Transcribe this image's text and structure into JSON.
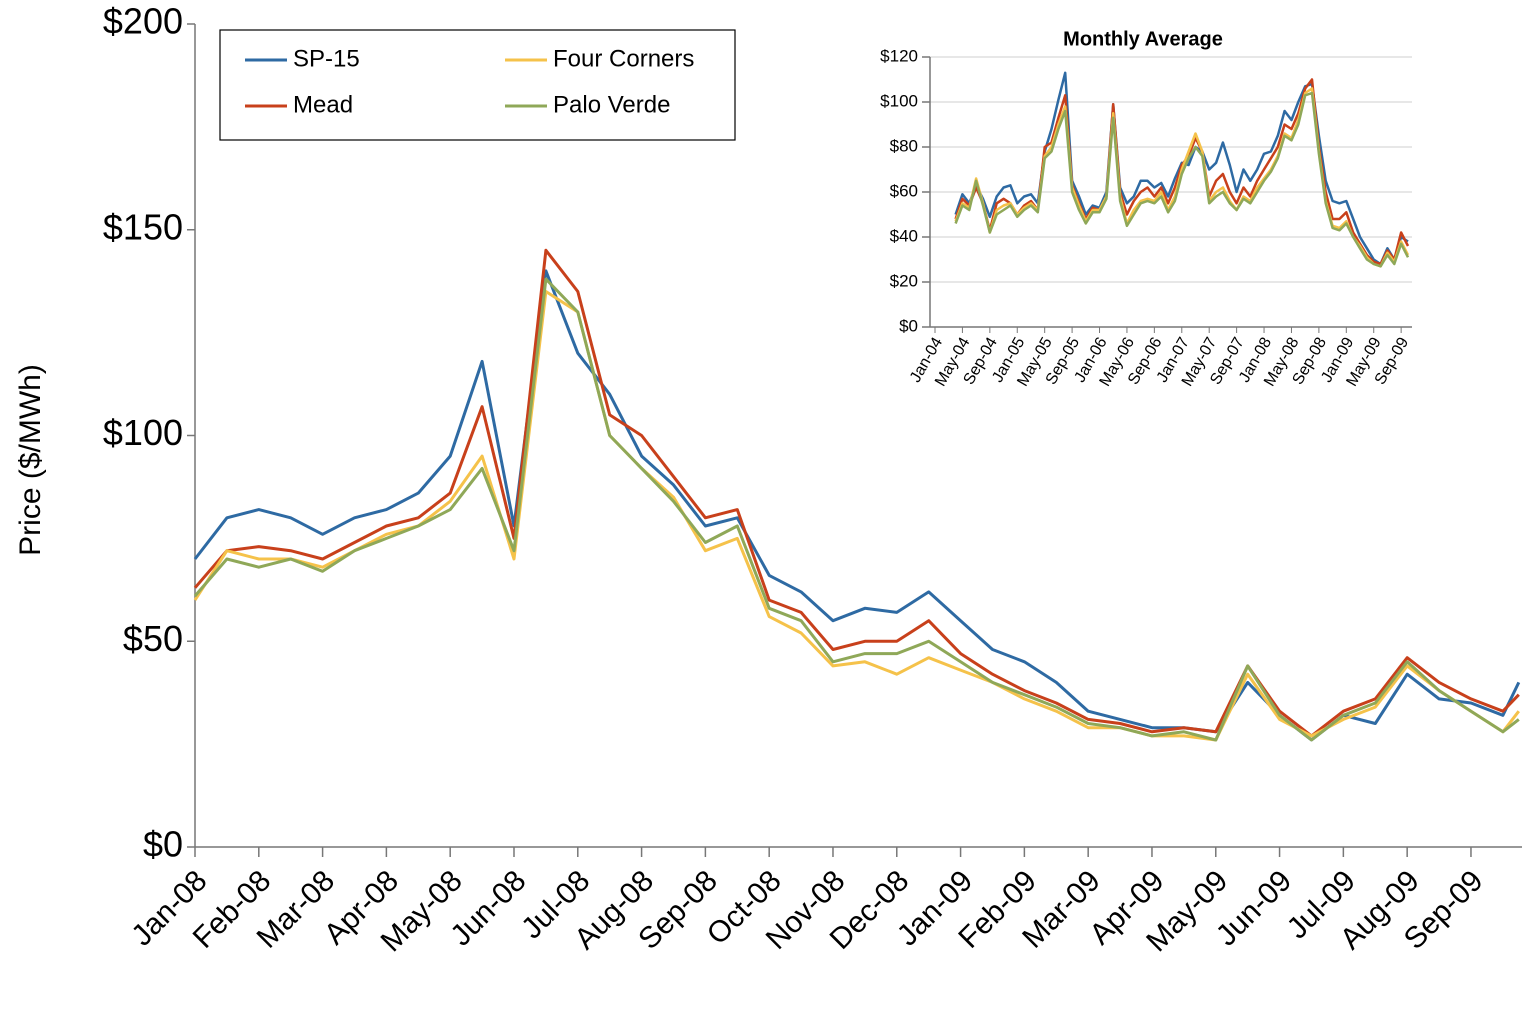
{
  "chart_data": [
    {
      "type": "line",
      "y_label": "Price ($/MWh)",
      "x": [
        0,
        0.5,
        1,
        1.5,
        2,
        2.5,
        3,
        3.5,
        4,
        4.5,
        5,
        5.5,
        6,
        6.5,
        7,
        7.5,
        8,
        8.5,
        9,
        9.5,
        10,
        10.5,
        11,
        11.5,
        12,
        12.5,
        13,
        13.5,
        14,
        14.5,
        15,
        15.5,
        16,
        16.5,
        17,
        17.5,
        18,
        18.5,
        19,
        19.5,
        20,
        20.5,
        20.75
      ],
      "xlim": [
        0,
        20.8
      ],
      "xticks": [
        {
          "value": 0,
          "label": "Jan-08"
        },
        {
          "value": 1,
          "label": "Feb-08"
        },
        {
          "value": 2,
          "label": "Mar-08"
        },
        {
          "value": 3,
          "label": "Apr-08"
        },
        {
          "value": 4,
          "label": "May-08"
        },
        {
          "value": 5,
          "label": "Jun-08"
        },
        {
          "value": 6,
          "label": "Jul-08"
        },
        {
          "value": 7,
          "label": "Aug-08"
        },
        {
          "value": 8,
          "label": "Sep-08"
        },
        {
          "value": 9,
          "label": "Oct-08"
        },
        {
          "value": 10,
          "label": "Nov-08"
        },
        {
          "value": 11,
          "label": "Dec-08"
        },
        {
          "value": 12,
          "label": "Jan-09"
        },
        {
          "value": 13,
          "label": "Feb-09"
        },
        {
          "value": 14,
          "label": "Mar-09"
        },
        {
          "value": 15,
          "label": "Apr-09"
        },
        {
          "value": 16,
          "label": "May-09"
        },
        {
          "value": 17,
          "label": "Jun-09"
        },
        {
          "value": 18,
          "label": "Jul-09"
        },
        {
          "value": 19,
          "label": "Aug-09"
        },
        {
          "value": 20,
          "label": "Sep-09"
        }
      ],
      "ylim": [
        0,
        200
      ],
      "yticks": [
        {
          "value": 0,
          "label": "$0"
        },
        {
          "value": 50,
          "label": "$50"
        },
        {
          "value": 100,
          "label": "$100"
        },
        {
          "value": 150,
          "label": "$150"
        },
        {
          "value": 200,
          "label": "$200"
        }
      ],
      "grid": false,
      "legend": "upper left",
      "series": [
        {
          "name": "SP-15",
          "color": "#2e6aa3",
          "values": [
            70,
            80,
            82,
            80,
            76,
            80,
            82,
            86,
            95,
            118,
            78,
            140,
            120,
            110,
            95,
            88,
            78,
            80,
            66,
            62,
            55,
            58,
            57,
            62,
            55,
            48,
            45,
            40,
            33,
            31,
            29,
            29,
            28,
            40,
            32,
            26,
            32,
            30,
            42,
            36,
            35,
            32,
            40
          ]
        },
        {
          "name": "Mead",
          "color": "#c8401b",
          "values": [
            63,
            72,
            73,
            72,
            70,
            74,
            78,
            80,
            86,
            107,
            75,
            145,
            135,
            105,
            100,
            90,
            80,
            82,
            60,
            57,
            48,
            50,
            50,
            55,
            47,
            42,
            38,
            35,
            31,
            30,
            28,
            29,
            28,
            44,
            33,
            27,
            33,
            36,
            46,
            40,
            36,
            33,
            37
          ]
        },
        {
          "name": "Four Corners",
          "color": "#f5c24a",
          "values": [
            60,
            72,
            70,
            70,
            68,
            72,
            76,
            78,
            84,
            95,
            70,
            135,
            130,
            100,
            92,
            85,
            72,
            75,
            56,
            52,
            44,
            45,
            42,
            46,
            43,
            40,
            36,
            33,
            29,
            29,
            27,
            27,
            26,
            42,
            31,
            27,
            31,
            34,
            44,
            38,
            33,
            28,
            33
          ]
        },
        {
          "name": "Palo Verde",
          "color": "#8fa858",
          "values": [
            61,
            70,
            68,
            70,
            67,
            72,
            75,
            78,
            82,
            92,
            72,
            138,
            130,
            100,
            92,
            84,
            74,
            78,
            58,
            55,
            45,
            47,
            47,
            50,
            45,
            40,
            37,
            34,
            30,
            29,
            27,
            28,
            26,
            44,
            32,
            26,
            32,
            35,
            45,
            38,
            33,
            28,
            31
          ]
        }
      ]
    },
    {
      "type": "line",
      "title": "Monthly Average",
      "categories": [
        "Jan-04",
        null,
        null,
        null,
        "May-04",
        null,
        null,
        null,
        "Sep-04",
        null,
        null,
        null,
        "Jan-05",
        null,
        null,
        null,
        "May-05",
        null,
        null,
        null,
        "Sep-05",
        null,
        null,
        null,
        "Jan-06",
        null,
        null,
        null,
        "May-06",
        null,
        null,
        null,
        "Sep-06",
        null,
        null,
        null,
        "Jan-07",
        null,
        null,
        null,
        "May-07",
        null,
        null,
        null,
        "Sep-07",
        null,
        null,
        null,
        "Jan-08",
        null,
        null,
        null,
        "May-08",
        null,
        null,
        null,
        "Sep-08",
        null,
        null,
        null,
        "Jan-09",
        null,
        null,
        null,
        "May-09",
        null,
        null,
        null,
        "Sep-09",
        null
      ],
      "ylim": [
        0,
        120
      ],
      "yticks": [
        {
          "value": 0,
          "label": "$0"
        },
        {
          "value": 20,
          "label": "$20"
        },
        {
          "value": 40,
          "label": "$40"
        },
        {
          "value": 60,
          "label": "$60"
        },
        {
          "value": 80,
          "label": "$80"
        },
        {
          "value": 100,
          "label": "$100"
        },
        {
          "value": 120,
          "label": "$120"
        }
      ],
      "grid": true,
      "series": [
        {
          "name": "SP-15",
          "color": "#2e6aa3",
          "values": [
            null,
            null,
            null,
            50,
            59,
            55,
            63,
            57,
            49,
            58,
            62,
            63,
            55,
            58,
            59,
            55,
            78,
            88,
            101,
            113,
            65,
            58,
            50,
            54,
            53,
            60,
            99,
            62,
            55,
            58,
            65,
            65,
            62,
            64,
            58,
            66,
            73,
            72,
            80,
            78,
            70,
            73,
            82,
            72,
            60,
            70,
            65,
            70,
            77,
            78,
            85,
            96,
            92,
            100,
            107,
            108,
            85,
            65,
            56,
            55,
            56,
            48,
            40,
            35,
            30,
            28,
            35,
            30,
            40,
            38
          ]
        },
        {
          "name": "Mead",
          "color": "#c8401b",
          "values": [
            null,
            null,
            null,
            48,
            57,
            54,
            62,
            55,
            43,
            55,
            57,
            55,
            50,
            54,
            56,
            52,
            80,
            82,
            93,
            103,
            63,
            55,
            48,
            53,
            52,
            58,
            99,
            60,
            50,
            56,
            60,
            62,
            58,
            62,
            55,
            62,
            72,
            76,
            84,
            78,
            58,
            65,
            68,
            60,
            55,
            62,
            58,
            65,
            70,
            75,
            80,
            90,
            88,
            95,
            106,
            110,
            80,
            60,
            48,
            48,
            51,
            42,
            37,
            32,
            29,
            28,
            34,
            30,
            42,
            36
          ]
        },
        {
          "name": "Four Corners",
          "color": "#f5c24a",
          "values": [
            null,
            null,
            null,
            47,
            55,
            53,
            66,
            55,
            42,
            52,
            54,
            55,
            50,
            53,
            55,
            52,
            76,
            80,
            90,
            98,
            62,
            54,
            47,
            52,
            52,
            58,
            95,
            58,
            46,
            52,
            56,
            57,
            56,
            60,
            52,
            58,
            70,
            78,
            86,
            78,
            56,
            60,
            62,
            56,
            52,
            58,
            56,
            62,
            66,
            70,
            76,
            86,
            84,
            92,
            104,
            106,
            78,
            56,
            45,
            44,
            47,
            40,
            36,
            31,
            28,
            27,
            33,
            29,
            38,
            32
          ]
        },
        {
          "name": "Palo Verde",
          "color": "#8fa858",
          "values": [
            null,
            null,
            null,
            46,
            54,
            52,
            65,
            54,
            42,
            50,
            52,
            54,
            49,
            52,
            54,
            51,
            75,
            78,
            88,
            96,
            60,
            52,
            46,
            51,
            51,
            57,
            93,
            56,
            45,
            50,
            55,
            56,
            55,
            58,
            51,
            56,
            68,
            75,
            80,
            76,
            55,
            58,
            60,
            55,
            52,
            57,
            55,
            60,
            65,
            69,
            75,
            85,
            83,
            90,
            103,
            104,
            77,
            55,
            44,
            43,
            46,
            40,
            35,
            30,
            28,
            27,
            32,
            28,
            37,
            31
          ]
        }
      ]
    }
  ]
}
